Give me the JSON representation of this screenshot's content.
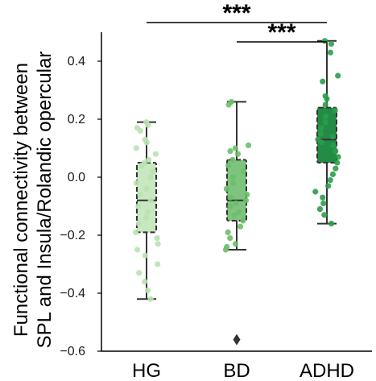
{
  "chart_data": {
    "type": "box",
    "ylabel": "Functional connectivity between SPL and Insula/Rolandic opercular",
    "ylabel_lines": [
      "Functional connectivity between",
      "SPL and Insula/Rolandic opercular"
    ],
    "ylim": [
      -0.6,
      0.5
    ],
    "yticks": [
      -0.6,
      -0.4,
      -0.2,
      0.0,
      0.2,
      0.4
    ],
    "ytick_labels": [
      "−0.6",
      "−0.4",
      "−0.2",
      "0.0",
      "0.2",
      "0.4"
    ],
    "categories": [
      "HG",
      "BD",
      "ADHD"
    ],
    "groups": [
      {
        "name": "HG",
        "fill": "#c7e8c0",
        "point_color": "#b9e2b0",
        "box": {
          "whislo": -0.42,
          "q1": -0.19,
          "median": -0.08,
          "q3": 0.05,
          "whishi": 0.19
        },
        "fliers": [],
        "points": [
          0.19,
          0.18,
          0.17,
          0.16,
          0.13,
          0.12,
          0.1,
          0.08,
          0.06,
          0.05,
          0.04,
          0.02,
          0.0,
          -0.02,
          -0.04,
          -0.06,
          -0.08,
          -0.1,
          -0.12,
          -0.14,
          -0.16,
          -0.19,
          -0.21,
          -0.23,
          -0.25,
          -0.27,
          -0.3,
          -0.33,
          -0.36,
          -0.39,
          -0.42
        ]
      },
      {
        "name": "BD",
        "fill": "#7ec47f",
        "point_color": "#6cbf6a",
        "box": {
          "whislo": -0.25,
          "q1": -0.15,
          "median": -0.08,
          "q3": 0.06,
          "whishi": 0.26
        },
        "fliers": [
          -0.56
        ],
        "points": [
          0.26,
          0.25,
          0.11,
          0.1,
          0.09,
          0.08,
          0.06,
          0.04,
          0.02,
          0.0,
          -0.02,
          -0.04,
          -0.06,
          -0.07,
          -0.08,
          -0.09,
          -0.1,
          -0.12,
          -0.13,
          -0.15,
          -0.17,
          -0.19,
          -0.21,
          -0.23,
          -0.24,
          -0.25
        ]
      },
      {
        "name": "ADHD",
        "fill": "#238b45",
        "point_color": "#2a9d4c",
        "box": {
          "whislo": -0.16,
          "q1": 0.05,
          "median": 0.13,
          "q3": 0.24,
          "whishi": 0.47
        },
        "fliers": [],
        "points": [
          0.47,
          0.46,
          0.43,
          0.35,
          0.33,
          0.28,
          0.27,
          0.25,
          0.23,
          0.21,
          0.19,
          0.17,
          0.15,
          0.14,
          0.13,
          0.12,
          0.11,
          0.09,
          0.07,
          0.05,
          0.03,
          0.01,
          -0.01,
          -0.03,
          -0.05,
          -0.07,
          -0.09,
          -0.11,
          -0.13,
          -0.16
        ]
      }
    ],
    "significance": [
      {
        "from": "HG",
        "to": "ADHD",
        "label": "***"
      },
      {
        "from": "BD",
        "to": "ADHD",
        "label": "***"
      }
    ],
    "colors": {
      "axis": "#000000",
      "box_edge": "#333333"
    }
  }
}
